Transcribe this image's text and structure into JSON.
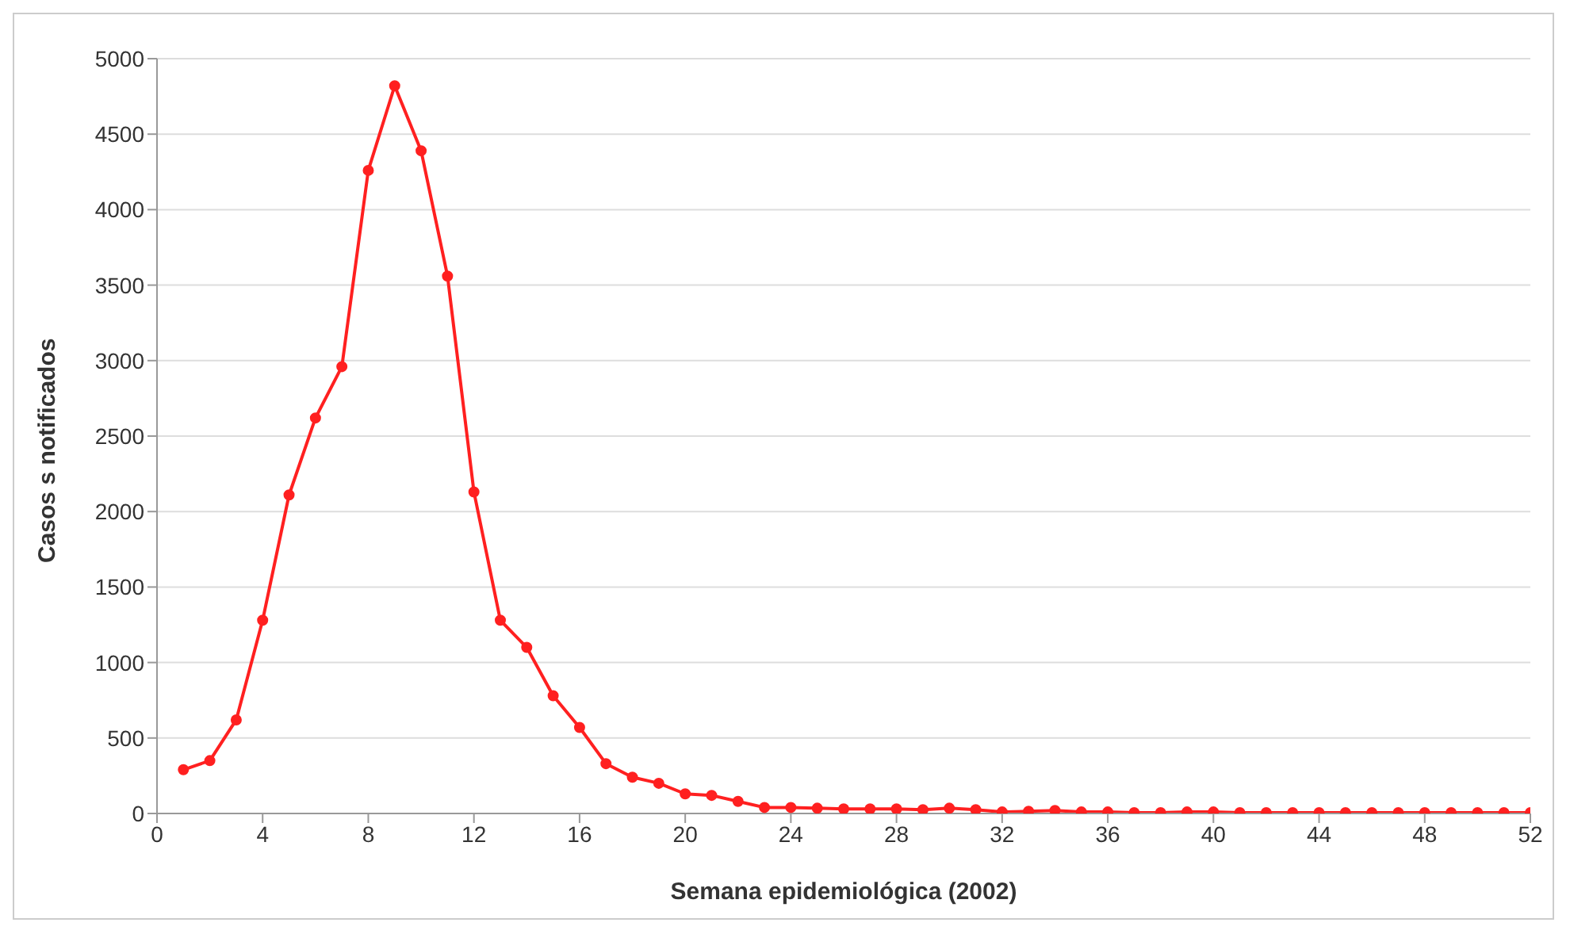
{
  "chart_data": {
    "type": "line",
    "xlabel": "Semana epidemiológica (2002)",
    "ylabel": "Casos s notificados",
    "x": [
      1,
      2,
      3,
      4,
      5,
      6,
      7,
      8,
      9,
      10,
      11,
      12,
      13,
      14,
      15,
      16,
      17,
      18,
      19,
      20,
      21,
      22,
      23,
      24,
      25,
      26,
      27,
      28,
      29,
      30,
      31,
      32,
      33,
      34,
      35,
      36,
      37,
      38,
      39,
      40,
      41,
      42,
      43,
      44,
      45,
      46,
      47,
      48,
      49,
      50,
      51,
      52
    ],
    "series": [
      {
        "color": "#ff2020",
        "values": [
          290,
          350,
          620,
          1280,
          2110,
          2620,
          2960,
          4260,
          4820,
          4390,
          3560,
          2130,
          1280,
          1100,
          780,
          570,
          330,
          240,
          200,
          130,
          120,
          80,
          40,
          40,
          35,
          30,
          30,
          30,
          25,
          35,
          25,
          10,
          15,
          20,
          10,
          10,
          5,
          5,
          10,
          10,
          5,
          5,
          5,
          5,
          5,
          5,
          5,
          5,
          5,
          5,
          5,
          5
        ]
      }
    ],
    "xlim": [
      0,
      52
    ],
    "xticks": [
      0,
      4,
      8,
      12,
      16,
      20,
      24,
      28,
      32,
      36,
      40,
      44,
      48,
      52
    ],
    "ylim": [
      0,
      5000
    ],
    "yticks": [
      0,
      500,
      1000,
      1500,
      2000,
      2500,
      3000,
      3500,
      4000,
      4500,
      5000
    ],
    "grid": "y",
    "marker": "circle",
    "line_style": "solid",
    "legend": false
  }
}
